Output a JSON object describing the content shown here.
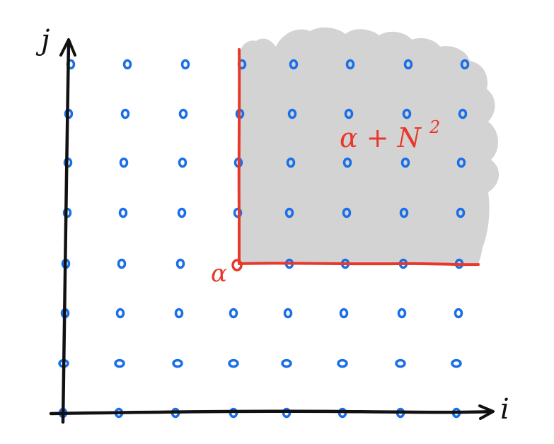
{
  "axes": {
    "x_label": "i",
    "y_label": "j"
  },
  "lattice": {
    "columns": 8,
    "rows": 8,
    "dot_color": "#1a6fe8"
  },
  "point": {
    "label": "α",
    "column": 3,
    "row": 3,
    "color": "#e8382b"
  },
  "region": {
    "label_base": "α + N",
    "label_exponent": "2",
    "fill_color": "#d3d3d3",
    "border_color": "#e8382b",
    "label_color": "#e8382b"
  },
  "axis_color": "#111111"
}
